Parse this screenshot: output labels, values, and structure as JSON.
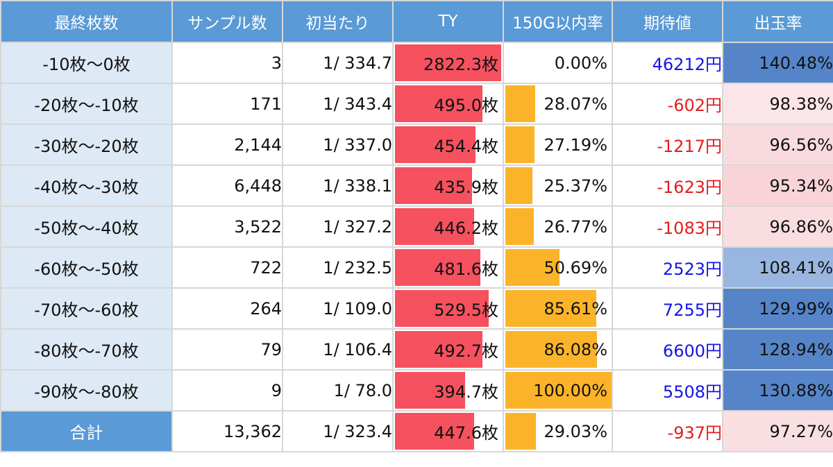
{
  "colors": {
    "header_bg": "#5a9ad6",
    "label_bg": "#dde9f5",
    "ty_bar": "#f5515f",
    "rate_bar": "#fbb42a",
    "positive": "#1515e6",
    "negative": "#e61c1c"
  },
  "headers": [
    "最終枚数",
    "サンプル数",
    "初当たり",
    "TY",
    "150G以内率",
    "期待値",
    "出玉率"
  ],
  "chart_data": {
    "type": "table",
    "columns": [
      "最終枚数",
      "サンプル数",
      "初当たり",
      "TY",
      "150G以内率",
      "期待値",
      "出玉率"
    ],
    "rows": [
      {
        "label": "-10枚～0枚",
        "samples": "3",
        "first_hit": "1/ 334.7",
        "ty": "2822.3枚",
        "ty_value": 2822.3,
        "rate150": "0.00%",
        "rate150_value": 0.0,
        "ev": "46212円",
        "ev_value": 46212,
        "payout": "140.48%",
        "payout_value": 140.48
      },
      {
        "label": "-20枚～-10枚",
        "samples": "171",
        "first_hit": "1/ 343.4",
        "ty": "495.0枚",
        "ty_value": 495.0,
        "rate150": "28.07%",
        "rate150_value": 28.07,
        "ev": "-602円",
        "ev_value": -602,
        "payout": "98.38%",
        "payout_value": 98.38
      },
      {
        "label": "-30枚～-20枚",
        "samples": "2,144",
        "first_hit": "1/ 337.0",
        "ty": "454.4枚",
        "ty_value": 454.4,
        "rate150": "27.19%",
        "rate150_value": 27.19,
        "ev": "-1217円",
        "ev_value": -1217,
        "payout": "96.56%",
        "payout_value": 96.56
      },
      {
        "label": "-40枚～-30枚",
        "samples": "6,448",
        "first_hit": "1/ 338.1",
        "ty": "435.9枚",
        "ty_value": 435.9,
        "rate150": "25.37%",
        "rate150_value": 25.37,
        "ev": "-1623円",
        "ev_value": -1623,
        "payout": "95.34%",
        "payout_value": 95.34
      },
      {
        "label": "-50枚～-40枚",
        "samples": "3,522",
        "first_hit": "1/ 327.2",
        "ty": "446.2枚",
        "ty_value": 446.2,
        "rate150": "26.77%",
        "rate150_value": 26.77,
        "ev": "-1083円",
        "ev_value": -1083,
        "payout": "96.86%",
        "payout_value": 96.86
      },
      {
        "label": "-60枚～-50枚",
        "samples": "722",
        "first_hit": "1/ 232.5",
        "ty": "481.6枚",
        "ty_value": 481.6,
        "rate150": "50.69%",
        "rate150_value": 50.69,
        "ev": "2523円",
        "ev_value": 2523,
        "payout": "108.41%",
        "payout_value": 108.41
      },
      {
        "label": "-70枚～-60枚",
        "samples": "264",
        "first_hit": "1/ 109.0",
        "ty": "529.5枚",
        "ty_value": 529.5,
        "rate150": "85.61%",
        "rate150_value": 85.61,
        "ev": "7255円",
        "ev_value": 7255,
        "payout": "129.99%",
        "payout_value": 129.99
      },
      {
        "label": "-80枚～-70枚",
        "samples": "79",
        "first_hit": "1/ 106.4",
        "ty": "492.7枚",
        "ty_value": 492.7,
        "rate150": "86.08%",
        "rate150_value": 86.08,
        "ev": "6600円",
        "ev_value": 6600,
        "payout": "128.94%",
        "payout_value": 128.94
      },
      {
        "label": "-90枚～-80枚",
        "samples": "9",
        "first_hit": "1/ 78.0",
        "ty": "394.7枚",
        "ty_value": 394.7,
        "rate150": "100.00%",
        "rate150_value": 100.0,
        "ev": "5508円",
        "ev_value": 5508,
        "payout": "130.88%",
        "payout_value": 130.88
      },
      {
        "label": "合計",
        "samples": "13,362",
        "first_hit": "1/ 323.4",
        "ty": "447.6枚",
        "ty_value": 447.6,
        "rate150": "29.03%",
        "rate150_value": 29.03,
        "ev": "-937円",
        "ev_value": -937,
        "payout": "97.27%",
        "payout_value": 97.27,
        "total": true
      }
    ]
  }
}
